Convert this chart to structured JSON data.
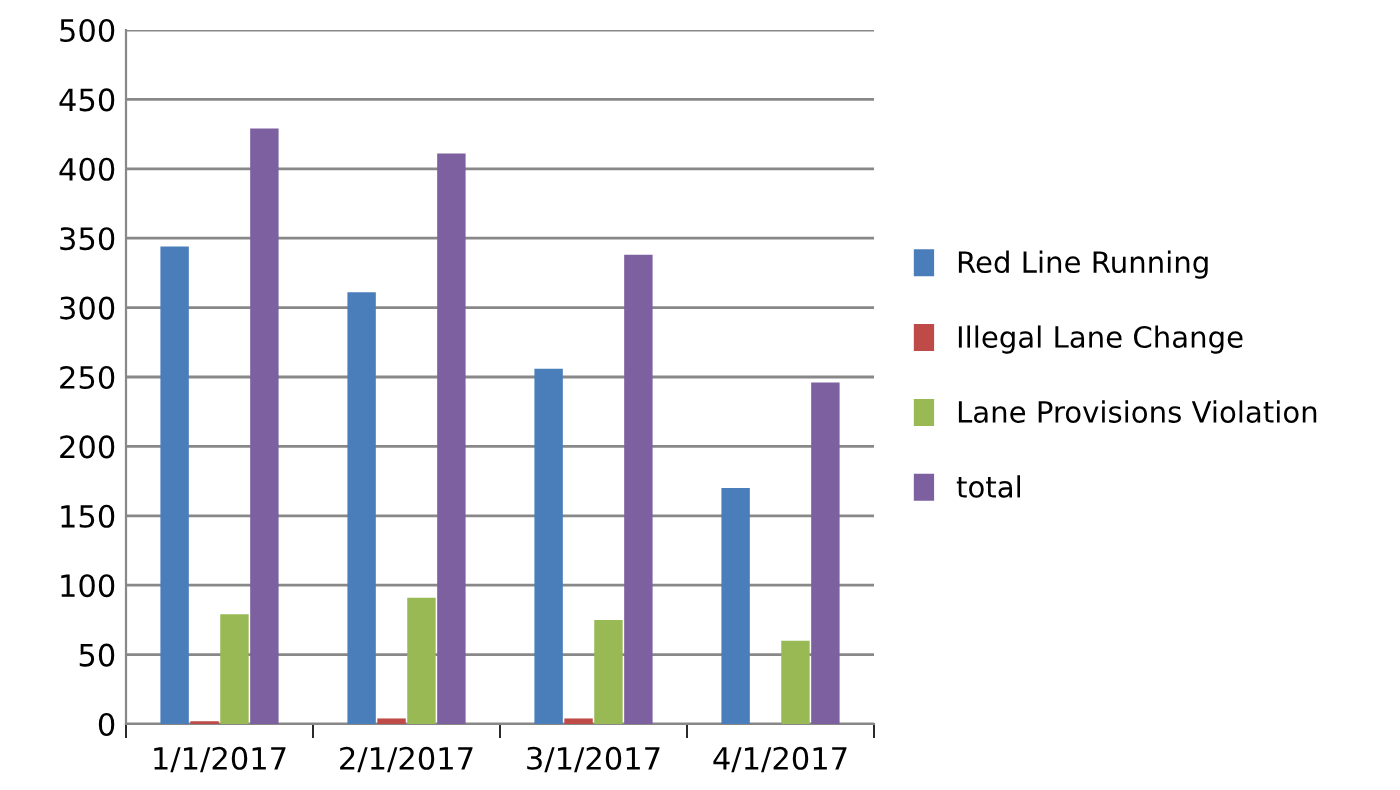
{
  "chart_data": {
    "type": "bar",
    "categories": [
      "1/1/2017",
      "2/1/2017",
      "3/1/2017",
      "4/1/2017"
    ],
    "series": [
      {
        "name": "Red Line Running",
        "color": "#4a7ebb",
        "values": [
          344,
          311,
          256,
          170
        ]
      },
      {
        "name": "Illegal Lane Change",
        "color": "#be4b48",
        "values": [
          2,
          4,
          4,
          0
        ]
      },
      {
        "name": "Lane Provisions Violation",
        "color": "#98b954",
        "values": [
          79,
          91,
          75,
          60
        ]
      },
      {
        "name": "total",
        "color": "#7d60a0",
        "values": [
          429,
          411,
          338,
          246
        ]
      }
    ],
    "ylim": [
      0,
      500
    ],
    "yticks": [
      0,
      50,
      100,
      150,
      200,
      250,
      300,
      350,
      400,
      450,
      500
    ],
    "grid": "y",
    "legend": "right"
  }
}
